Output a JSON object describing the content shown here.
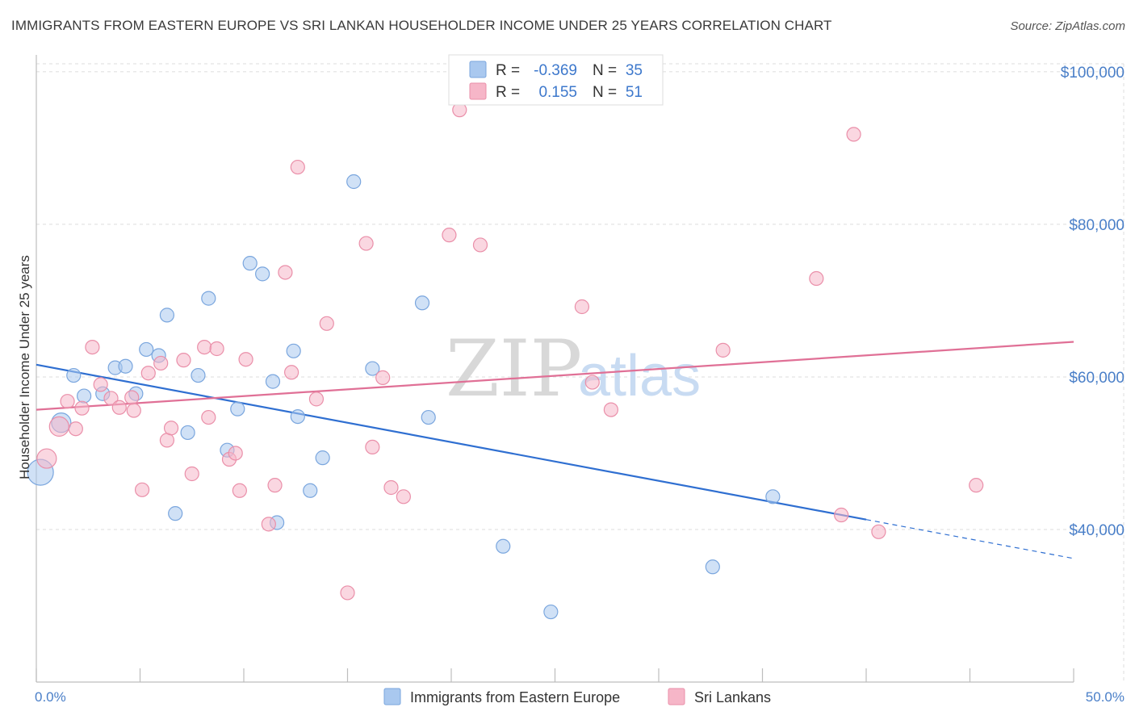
{
  "header": {
    "title": "IMMIGRANTS FROM EASTERN EUROPE VS SRI LANKAN HOUSEHOLDER INCOME UNDER 25 YEARS CORRELATION CHART",
    "source": "Source: ZipAtlas.com"
  },
  "watermark": {
    "zip": "ZIP",
    "atlas": "atlas"
  },
  "legend_top": {
    "rows": [
      {
        "r_label": "R =",
        "r_value": "-0.369",
        "n_label": "N =",
        "n_value": "35",
        "color": "#a9c8ef"
      },
      {
        "r_label": "R =",
        "r_value": "0.155",
        "n_label": "N =",
        "n_value": "51",
        "color": "#f6b6c8"
      }
    ]
  },
  "chart_data": {
    "type": "scatter",
    "title": "IMMIGRANTS FROM EASTERN EUROPE VS SRI LANKAN HOUSEHOLDER INCOME UNDER 25 YEARS CORRELATION CHART",
    "xlabel": "",
    "ylabel": "Householder Income Under 25 years",
    "xlim": [
      0,
      50
    ],
    "ylim": [
      20000,
      102000
    ],
    "x_tick_labels": [
      "0.0%",
      "50.0%"
    ],
    "y_ticks": [
      40000,
      60000,
      80000,
      100000
    ],
    "y_tick_labels": [
      "$40,000",
      "$60,000",
      "$80,000",
      "$100,000"
    ],
    "grid": true,
    "series": [
      {
        "name": "Immigrants from Eastern Europe",
        "color": "#a9c8ef",
        "stroke": "#7aa6de",
        "line_color": "#2f6fd1",
        "trend": {
          "x0": 0,
          "y0": 61600,
          "x1": 40,
          "y1": 41300,
          "dash_to_x": 50,
          "dash_to_y": 36200
        },
        "points": [
          [
            0.2,
            47500,
            3
          ],
          [
            1.2,
            54000,
            2
          ],
          [
            1.8,
            60200,
            1
          ],
          [
            2.3,
            57500,
            1
          ],
          [
            3.2,
            57800,
            1
          ],
          [
            3.8,
            61200,
            1
          ],
          [
            4.3,
            61400,
            1
          ],
          [
            4.8,
            57800,
            1
          ],
          [
            5.3,
            63600,
            1
          ],
          [
            5.9,
            62800,
            1
          ],
          [
            6.3,
            68100,
            1
          ],
          [
            6.7,
            42100,
            1
          ],
          [
            7.3,
            52700,
            1
          ],
          [
            7.8,
            60200,
            1
          ],
          [
            8.3,
            70300,
            1
          ],
          [
            9.2,
            50400,
            1
          ],
          [
            9.7,
            55800,
            1
          ],
          [
            10.3,
            74900,
            1
          ],
          [
            10.9,
            73500,
            1
          ],
          [
            11.4,
            59400,
            1
          ],
          [
            11.6,
            40900,
            1
          ],
          [
            12.6,
            54800,
            1
          ],
          [
            12.4,
            63400,
            1
          ],
          [
            13.2,
            45100,
            1
          ],
          [
            13.8,
            49400,
            1
          ],
          [
            15.3,
            85600,
            1
          ],
          [
            16.2,
            61100,
            1
          ],
          [
            18.6,
            69700,
            1
          ],
          [
            18.9,
            54700,
            1
          ],
          [
            22.5,
            37800,
            1
          ],
          [
            24.8,
            29200,
            1
          ],
          [
            32.6,
            35100,
            1
          ],
          [
            35.5,
            44300,
            1
          ]
        ]
      },
      {
        "name": "Sri Lankans",
        "color": "#f6b6c8",
        "stroke": "#ea8fa9",
        "line_color": "#e07096",
        "trend": {
          "x0": 0,
          "y0": 55700,
          "x1": 50,
          "y1": 64600
        },
        "points": [
          [
            0.5,
            49300,
            2
          ],
          [
            1.1,
            53500,
            2
          ],
          [
            1.5,
            56800,
            1
          ],
          [
            1.9,
            53200,
            1
          ],
          [
            2.2,
            55900,
            1
          ],
          [
            2.7,
            63900,
            1
          ],
          [
            3.1,
            59000,
            1
          ],
          [
            3.6,
            57200,
            1
          ],
          [
            4.0,
            56000,
            1
          ],
          [
            4.6,
            57300,
            1
          ],
          [
            4.7,
            55600,
            1
          ],
          [
            5.1,
            45200,
            1
          ],
          [
            5.4,
            60500,
            1
          ],
          [
            6.0,
            61800,
            1
          ],
          [
            6.3,
            51700,
            1
          ],
          [
            6.5,
            53300,
            1
          ],
          [
            7.1,
            62200,
            1
          ],
          [
            7.5,
            47300,
            1
          ],
          [
            8.1,
            63900,
            1
          ],
          [
            8.3,
            54700,
            1
          ],
          [
            8.7,
            63700,
            1
          ],
          [
            9.3,
            49200,
            1
          ],
          [
            9.8,
            45100,
            1
          ],
          [
            9.6,
            50000,
            1
          ],
          [
            10.1,
            62300,
            1
          ],
          [
            11.2,
            40700,
            1
          ],
          [
            11.5,
            45800,
            1
          ],
          [
            12.0,
            73700,
            1
          ],
          [
            12.3,
            60600,
            1
          ],
          [
            12.6,
            87500,
            1
          ],
          [
            13.5,
            57100,
            1
          ],
          [
            14.0,
            67000,
            1
          ],
          [
            15.0,
            31700,
            1
          ],
          [
            15.9,
            77500,
            1
          ],
          [
            16.2,
            50800,
            1
          ],
          [
            16.7,
            59900,
            1
          ],
          [
            17.1,
            45500,
            1
          ],
          [
            17.7,
            44300,
            1
          ],
          [
            19.9,
            78600,
            1
          ],
          [
            20.4,
            95000,
            1
          ],
          [
            21.4,
            77300,
            1
          ],
          [
            26.3,
            69200,
            1
          ],
          [
            26.8,
            59300,
            1
          ],
          [
            27.7,
            55700,
            1
          ],
          [
            33.1,
            63500,
            1
          ],
          [
            37.6,
            72900,
            1
          ],
          [
            38.8,
            41900,
            1
          ],
          [
            39.4,
            91800,
            1
          ],
          [
            40.6,
            39700,
            1
          ],
          [
            45.3,
            45800,
            1
          ]
        ]
      }
    ]
  },
  "legend_bottom": {
    "items": [
      {
        "label": "Immigrants from Eastern Europe",
        "color": "#a9c8ef"
      },
      {
        "label": "Sri Lankans",
        "color": "#f6b6c8"
      }
    ]
  }
}
